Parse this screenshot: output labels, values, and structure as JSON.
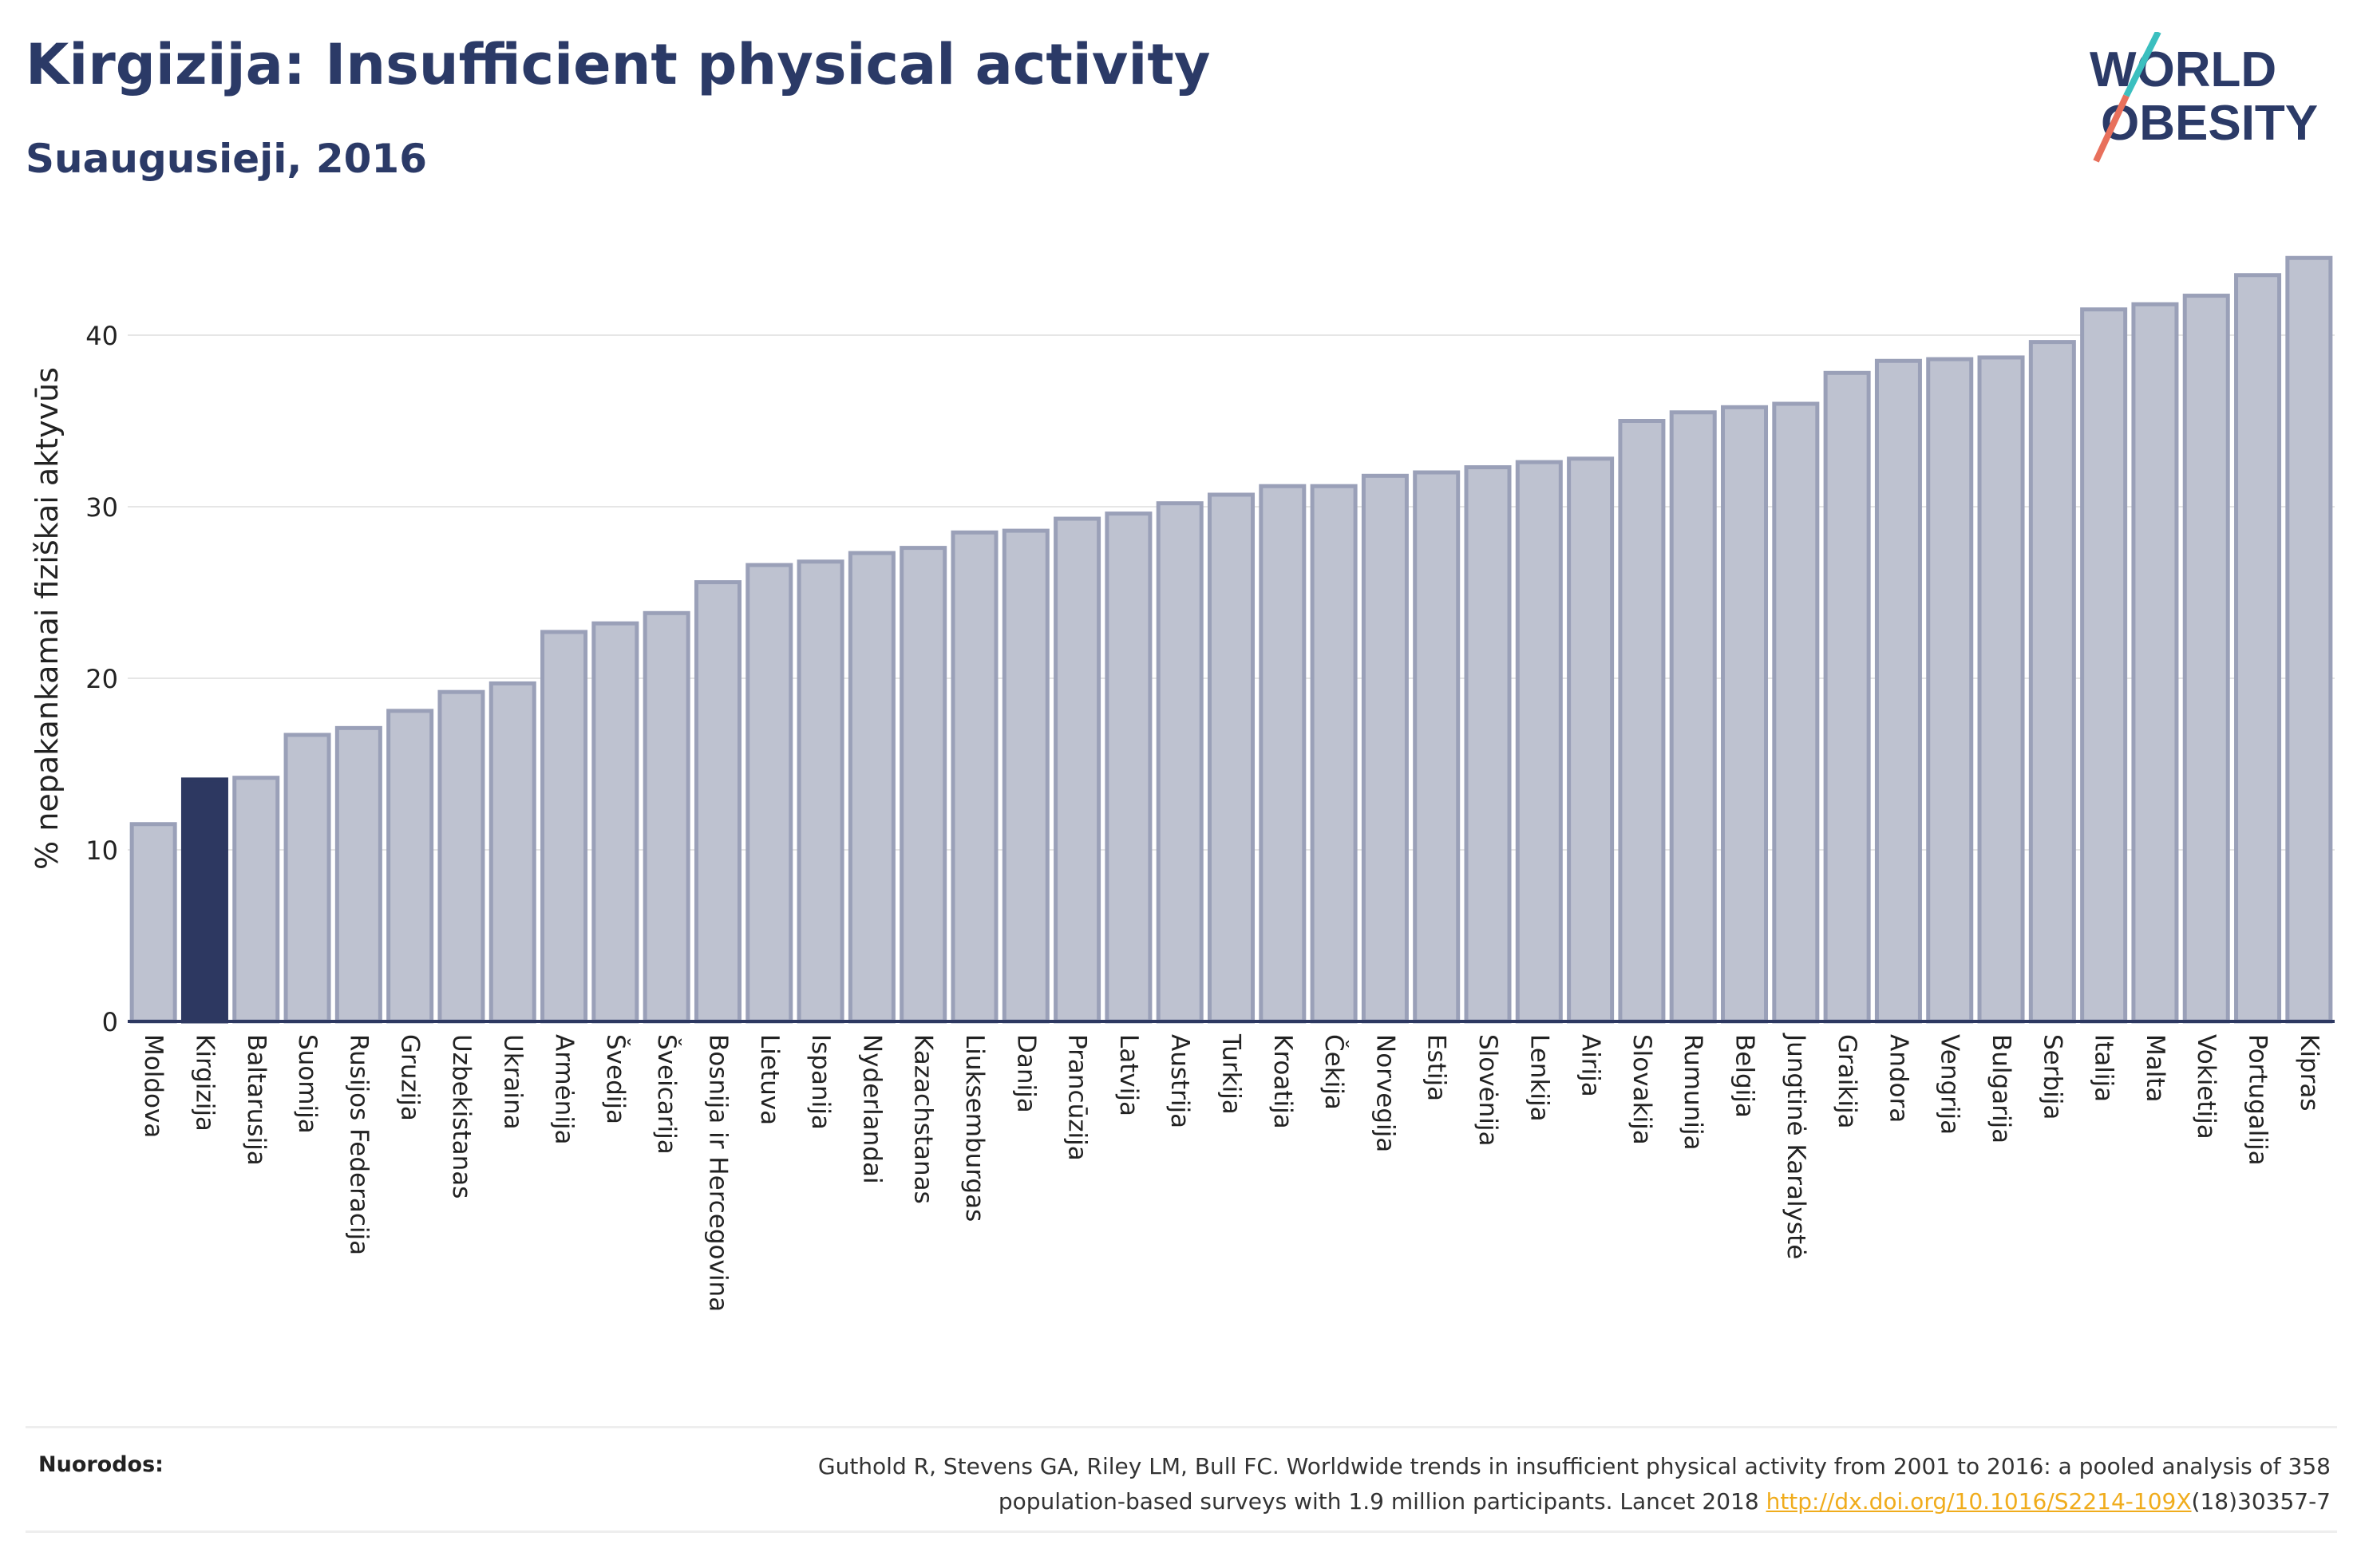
{
  "header": {
    "title": "Kirgizija: Insufficient physical activity",
    "subtitle": "Suaugusieji, 2016"
  },
  "logo": {
    "line1": "WORLD",
    "line2": "OBESITY"
  },
  "colors": {
    "bar": "#bec2d0",
    "bar_stroke": "#9aa0b8",
    "highlight": "#2d3861",
    "title": "#2b3a67",
    "link": "#f0ac1c"
  },
  "chart_data": {
    "type": "bar",
    "ylabel": "% nepakankamai fiziškai aktyvūs",
    "ylim": [
      0,
      45
    ],
    "yticks": [
      0,
      10,
      20,
      30,
      40
    ],
    "grid": true,
    "highlight": "Kirgizija",
    "categories": [
      "Moldova",
      "Kirgizija",
      "Baltarusija",
      "Suomija",
      "Rusijos Federacija",
      "Gruzija",
      "Uzbekistanas",
      "Ukraina",
      "Armėnija",
      "Švedija",
      "Šveicarija",
      "Bosnija ir Hercegovina",
      "Lietuva",
      "Ispanija",
      "Nyderlandai",
      "Kazachstanas",
      "Liuksemburgas",
      "Danija",
      "Prancūzija",
      "Latvija",
      "Austrija",
      "Turkija",
      "Kroatija",
      "Čekija",
      "Norvegija",
      "Estija",
      "Slovėnija",
      "Lenkija",
      "Airija",
      "Slovakija",
      "Rumunija",
      "Belgija",
      "Jungtinė Karalystė",
      "Graikija",
      "Andora",
      "Vengrija",
      "Bulgarija",
      "Serbija",
      "Italija",
      "Malta",
      "Vokietija",
      "Portugalija",
      "Kipras"
    ],
    "values": [
      11.5,
      14.1,
      14.2,
      16.7,
      17.1,
      18.1,
      19.2,
      19.7,
      22.7,
      23.2,
      23.8,
      25.6,
      26.6,
      26.8,
      27.3,
      27.6,
      28.5,
      28.6,
      29.3,
      29.6,
      30.2,
      30.7,
      31.2,
      31.2,
      31.8,
      32.0,
      32.3,
      32.6,
      32.8,
      35.0,
      35.5,
      35.8,
      36.0,
      37.8,
      38.5,
      38.6,
      38.7,
      39.6,
      41.5,
      41.8,
      42.3,
      43.5,
      44.5
    ]
  },
  "footer": {
    "label": "Nuorodos:",
    "line1": "Guthold R, Stevens GA, Riley LM, Bull FC. Worldwide trends in insufficient physical activity from 2001 to 2016: a pooled analysis of 358",
    "line2_pre": "population-based surveys with 1.9 million participants. Lancet 2018 ",
    "link": "http://dx.doi.org/10.1016/S2214-109X",
    "line2_post": "(18)30357-7"
  }
}
